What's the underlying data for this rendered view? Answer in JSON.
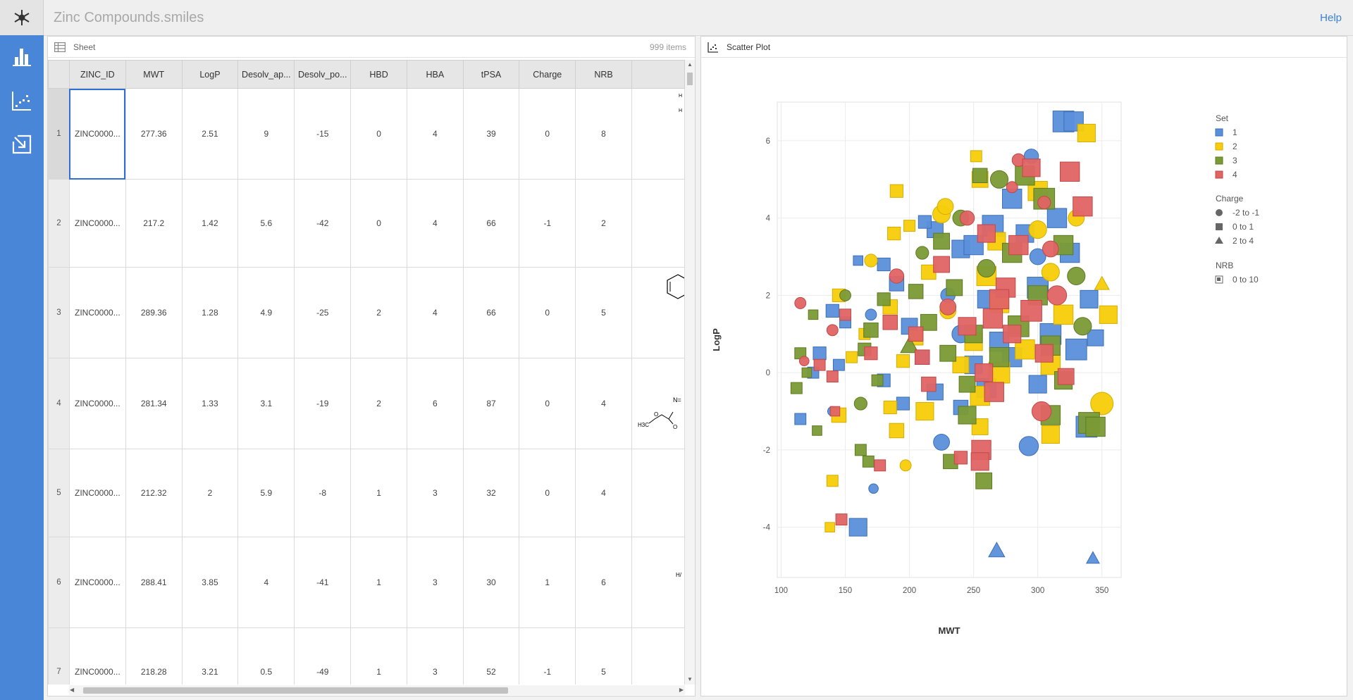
{
  "app": {
    "title": "Zinc Compounds.smiles",
    "help": "Help"
  },
  "nav": [
    "logo-icon",
    "bar-chart-icon",
    "scatter-plot-icon",
    "import-icon"
  ],
  "colors": {
    "accent": "#4a86d8",
    "set1": "#5b8fdb",
    "set2": "#f7cd0a",
    "set3": "#7a9a35",
    "set4": "#e06464",
    "selection": "#2f6fd6"
  },
  "sheet": {
    "title": "Sheet",
    "count": "999 items",
    "columns": [
      "ZINC_ID",
      "MWT",
      "LogP",
      "Desolv_ap...",
      "Desolv_po...",
      "HBD",
      "HBA",
      "tPSA",
      "Charge",
      "NRB"
    ],
    "rows": [
      {
        "n": "1",
        "cells": [
          "ZINC0000...",
          "277.36",
          "2.51",
          "9",
          "-15",
          "0",
          "4",
          "39",
          "0",
          "8"
        ]
      },
      {
        "n": "2",
        "cells": [
          "ZINC0000...",
          "217.2",
          "1.42",
          "5.6",
          "-42",
          "0",
          "4",
          "66",
          "-1",
          "2"
        ]
      },
      {
        "n": "3",
        "cells": [
          "ZINC0000...",
          "289.36",
          "1.28",
          "4.9",
          "-25",
          "2",
          "4",
          "66",
          "0",
          "5"
        ]
      },
      {
        "n": "4",
        "cells": [
          "ZINC0000...",
          "281.34",
          "1.33",
          "3.1",
          "-19",
          "2",
          "6",
          "87",
          "0",
          "4"
        ]
      },
      {
        "n": "5",
        "cells": [
          "ZINC0000...",
          "212.32",
          "2",
          "5.9",
          "-8",
          "1",
          "3",
          "32",
          "0",
          "4"
        ]
      },
      {
        "n": "6",
        "cells": [
          "ZINC0000...",
          "288.41",
          "3.85",
          "4",
          "-41",
          "1",
          "3",
          "30",
          "1",
          "6"
        ]
      },
      {
        "n": "7",
        "cells": [
          "ZINC0000...",
          "218.28",
          "3.21",
          "0.5",
          "-49",
          "1",
          "3",
          "52",
          "-1",
          "5"
        ]
      }
    ],
    "mol_fragments": [
      "H",
      "H",
      "N=",
      "H3C",
      "O",
      "O",
      "H/"
    ]
  },
  "plot": {
    "title": "Scatter Plot",
    "legend": {
      "set_title": "Set",
      "set_items": [
        "1",
        "2",
        "3",
        "4"
      ],
      "charge_title": "Charge",
      "charge_items": [
        "-2 to -1",
        "0 to 1",
        "2 to 4"
      ],
      "nrb_title": "NRB",
      "nrb_items": [
        "0 to 10"
      ]
    }
  },
  "chart_data": {
    "type": "scatter",
    "title": "",
    "xlabel": "MWT",
    "ylabel": "LogP",
    "xlim": [
      97,
      365
    ],
    "ylim": [
      -5.3,
      7.0
    ],
    "xticks": [
      100,
      150,
      200,
      250,
      300,
      350
    ],
    "yticks": [
      -4,
      -2,
      0,
      2,
      4,
      6
    ],
    "grid": true,
    "legend_position": "right",
    "encoding": {
      "color": "Set",
      "shape": "Charge",
      "size": "NRB"
    },
    "series": [
      {
        "name": "1",
        "points": [
          [
            320,
            6.5,
            0,
            9
          ],
          [
            328,
            6.5,
            0,
            8
          ],
          [
            295,
            5.6,
            -1,
            5
          ],
          [
            280,
            4.5,
            0,
            8
          ],
          [
            265,
            3.8,
            0,
            9
          ],
          [
            220,
            3.7,
            0,
            6
          ],
          [
            240,
            3.2,
            0,
            7
          ],
          [
            300,
            3.0,
            -1,
            6
          ],
          [
            325,
            3.1,
            0,
            8
          ],
          [
            180,
            2.8,
            0,
            4
          ],
          [
            160,
            2.9,
            0,
            2
          ],
          [
            190,
            2.3,
            0,
            5
          ],
          [
            230,
            2.0,
            -1,
            5
          ],
          [
            260,
            1.9,
            0,
            7
          ],
          [
            300,
            2.2,
            0,
            9
          ],
          [
            340,
            1.9,
            0,
            7
          ],
          [
            140,
            1.6,
            0,
            4
          ],
          [
            150,
            1.3,
            0,
            3
          ],
          [
            170,
            1.5,
            -1,
            3
          ],
          [
            200,
            1.2,
            0,
            6
          ],
          [
            240,
            1.0,
            -1,
            7
          ],
          [
            270,
            0.8,
            0,
            8
          ],
          [
            310,
            1.0,
            0,
            9
          ],
          [
            345,
            0.9,
            0,
            6
          ],
          [
            130,
            0.5,
            0,
            4
          ],
          [
            145,
            0.2,
            0,
            3
          ],
          [
            210,
            0.4,
            0,
            5
          ],
          [
            250,
            0.2,
            0,
            7
          ],
          [
            280,
            0.4,
            0,
            8
          ],
          [
            330,
            0.6,
            0,
            9
          ],
          [
            125,
            0.0,
            0,
            3
          ],
          [
            180,
            -0.2,
            0,
            4
          ],
          [
            220,
            -0.5,
            0,
            6
          ],
          [
            260,
            -0.4,
            0,
            8
          ],
          [
            300,
            -0.3,
            0,
            7
          ],
          [
            140,
            -1.0,
            -1,
            2
          ],
          [
            195,
            -0.8,
            0,
            4
          ],
          [
            240,
            -0.9,
            0,
            5
          ],
          [
            338,
            -1.4,
            0,
            9
          ],
          [
            115,
            -1.2,
            0,
            3
          ],
          [
            225,
            -1.8,
            -1,
            6
          ],
          [
            293,
            -1.9,
            -1,
            8
          ],
          [
            172,
            -3.0,
            -1,
            2
          ],
          [
            160,
            -4.0,
            0,
            7
          ],
          [
            268,
            -4.6,
            2,
            6
          ],
          [
            343,
            -4.8,
            2,
            4
          ],
          [
            212,
            3.9,
            0,
            4
          ],
          [
            250,
            3.3,
            0,
            8
          ],
          [
            290,
            3.6,
            0,
            7
          ],
          [
            315,
            4.0,
            0,
            8
          ]
        ]
      },
      {
        "name": "2",
        "points": [
          [
            338,
            6.2,
            0,
            7
          ],
          [
            252,
            5.6,
            0,
            3
          ],
          [
            255,
            5.0,
            0,
            6
          ],
          [
            190,
            4.7,
            0,
            4
          ],
          [
            225,
            4.1,
            -1,
            7
          ],
          [
            300,
            4.7,
            0,
            8
          ],
          [
            330,
            4.0,
            -1,
            6
          ],
          [
            188,
            3.6,
            0,
            4
          ],
          [
            200,
            3.8,
            0,
            3
          ],
          [
            170,
            2.9,
            -1,
            4
          ],
          [
            215,
            2.6,
            0,
            5
          ],
          [
            260,
            2.5,
            0,
            8
          ],
          [
            310,
            2.6,
            -1,
            7
          ],
          [
            350,
            2.3,
            2,
            5
          ],
          [
            145,
            2.0,
            0,
            4
          ],
          [
            185,
            1.7,
            0,
            5
          ],
          [
            230,
            1.6,
            -1,
            6
          ],
          [
            270,
            1.8,
            0,
            8
          ],
          [
            320,
            1.5,
            0,
            8
          ],
          [
            355,
            1.5,
            0,
            7
          ],
          [
            165,
            1.0,
            0,
            3
          ],
          [
            205,
            0.9,
            0,
            5
          ],
          [
            250,
            0.8,
            0,
            7
          ],
          [
            290,
            0.6,
            0,
            8
          ],
          [
            155,
            0.4,
            0,
            3
          ],
          [
            195,
            0.3,
            0,
            4
          ],
          [
            240,
            0.2,
            0,
            6
          ],
          [
            270,
            0.0,
            0,
            9
          ],
          [
            310,
            0.2,
            0,
            8
          ],
          [
            350,
            -0.8,
            -1,
            10
          ],
          [
            145,
            -1.1,
            0,
            5
          ],
          [
            185,
            -0.9,
            0,
            4
          ],
          [
            212,
            -1.0,
            0,
            7
          ],
          [
            255,
            -0.6,
            0,
            8
          ],
          [
            310,
            -1.6,
            0,
            7
          ],
          [
            190,
            -1.5,
            0,
            5
          ],
          [
            255,
            -1.4,
            0,
            6
          ],
          [
            197,
            -2.4,
            -1,
            3
          ],
          [
            140,
            -2.8,
            0,
            3
          ],
          [
            138,
            -4.0,
            0,
            2
          ],
          [
            228,
            4.3,
            -1,
            6
          ],
          [
            268,
            3.4,
            0,
            7
          ],
          [
            300,
            3.7,
            -1,
            7
          ]
        ]
      },
      {
        "name": "3",
        "points": [
          [
            255,
            5.1,
            0,
            5
          ],
          [
            270,
            5.0,
            -1,
            7
          ],
          [
            290,
            5.1,
            0,
            8
          ],
          [
            305,
            4.5,
            0,
            9
          ],
          [
            240,
            4.0,
            -1,
            6
          ],
          [
            225,
            3.4,
            0,
            6
          ],
          [
            210,
            3.1,
            -1,
            4
          ],
          [
            280,
            3.1,
            0,
            8
          ],
          [
            320,
            3.3,
            0,
            8
          ],
          [
            260,
            2.7,
            -1,
            7
          ],
          [
            150,
            2.0,
            -1,
            3
          ],
          [
            180,
            1.9,
            0,
            4
          ],
          [
            205,
            2.1,
            0,
            5
          ],
          [
            235,
            2.2,
            0,
            6
          ],
          [
            300,
            2.0,
            0,
            8
          ],
          [
            330,
            2.5,
            -1,
            7
          ],
          [
            125,
            1.5,
            0,
            2
          ],
          [
            170,
            1.1,
            0,
            5
          ],
          [
            215,
            1.3,
            0,
            6
          ],
          [
            250,
            1.0,
            0,
            7
          ],
          [
            285,
            1.2,
            0,
            9
          ],
          [
            335,
            1.2,
            -1,
            7
          ],
          [
            115,
            0.5,
            0,
            3
          ],
          [
            165,
            0.6,
            0,
            4
          ],
          [
            200,
            0.7,
            2,
            7
          ],
          [
            230,
            0.5,
            0,
            6
          ],
          [
            270,
            0.4,
            0,
            8
          ],
          [
            310,
            0.7,
            0,
            8
          ],
          [
            120,
            0.0,
            0,
            2
          ],
          [
            175,
            -0.2,
            0,
            3
          ],
          [
            245,
            -0.3,
            0,
            6
          ],
          [
            320,
            -0.2,
            0,
            7
          ],
          [
            112,
            -0.4,
            0,
            3
          ],
          [
            162,
            -0.8,
            -1,
            4
          ],
          [
            245,
            -1.1,
            0,
            7
          ],
          [
            310,
            -1.1,
            0,
            8
          ],
          [
            128,
            -1.5,
            0,
            2
          ],
          [
            162,
            -2.0,
            0,
            3
          ],
          [
            232,
            -2.3,
            0,
            5
          ],
          [
            258,
            -2.8,
            0,
            6
          ],
          [
            168,
            -2.3,
            0,
            3
          ],
          [
            340,
            -1.3,
            0,
            9
          ],
          [
            345,
            -1.4,
            0,
            8
          ]
        ]
      },
      {
        "name": "4",
        "points": [
          [
            285,
            5.5,
            -1,
            4
          ],
          [
            295,
            5.3,
            0,
            7
          ],
          [
            325,
            5.2,
            0,
            8
          ],
          [
            280,
            4.8,
            -1,
            3
          ],
          [
            305,
            4.4,
            -1,
            4
          ],
          [
            335,
            4.3,
            0,
            8
          ],
          [
            245,
            4.0,
            -1,
            5
          ],
          [
            260,
            3.6,
            0,
            7
          ],
          [
            285,
            3.3,
            0,
            8
          ],
          [
            310,
            3.2,
            -1,
            6
          ],
          [
            225,
            2.8,
            0,
            6
          ],
          [
            190,
            2.5,
            -1,
            5
          ],
          [
            275,
            2.2,
            0,
            8
          ],
          [
            315,
            2.0,
            -1,
            8
          ],
          [
            115,
            1.8,
            -1,
            3
          ],
          [
            150,
            1.5,
            0,
            3
          ],
          [
            185,
            1.3,
            0,
            5
          ],
          [
            230,
            1.7,
            -1,
            6
          ],
          [
            265,
            1.4,
            0,
            8
          ],
          [
            295,
            1.6,
            0,
            9
          ],
          [
            140,
            1.1,
            -1,
            3
          ],
          [
            205,
            1.0,
            0,
            5
          ],
          [
            245,
            1.2,
            0,
            7
          ],
          [
            280,
            1.0,
            0,
            7
          ],
          [
            130,
            0.2,
            0,
            3
          ],
          [
            170,
            0.5,
            0,
            4
          ],
          [
            210,
            0.4,
            0,
            5
          ],
          [
            258,
            0.0,
            0,
            7
          ],
          [
            118,
            0.3,
            -1,
            2
          ],
          [
            305,
            0.5,
            0,
            7
          ],
          [
            140,
            -0.1,
            0,
            3
          ],
          [
            215,
            -0.3,
            0,
            5
          ],
          [
            266,
            -0.5,
            0,
            8
          ],
          [
            322,
            -0.1,
            0,
            6
          ],
          [
            142,
            -1.0,
            0,
            2
          ],
          [
            303,
            -1.0,
            -1,
            8
          ],
          [
            256,
            -2.0,
            0,
            8
          ],
          [
            255,
            -2.3,
            0,
            7
          ],
          [
            240,
            -2.2,
            0,
            4
          ],
          [
            177,
            -2.4,
            0,
            3
          ],
          [
            147,
            -3.8,
            0,
            3
          ],
          [
            270,
            1.9,
            0,
            8
          ]
        ]
      }
    ]
  }
}
